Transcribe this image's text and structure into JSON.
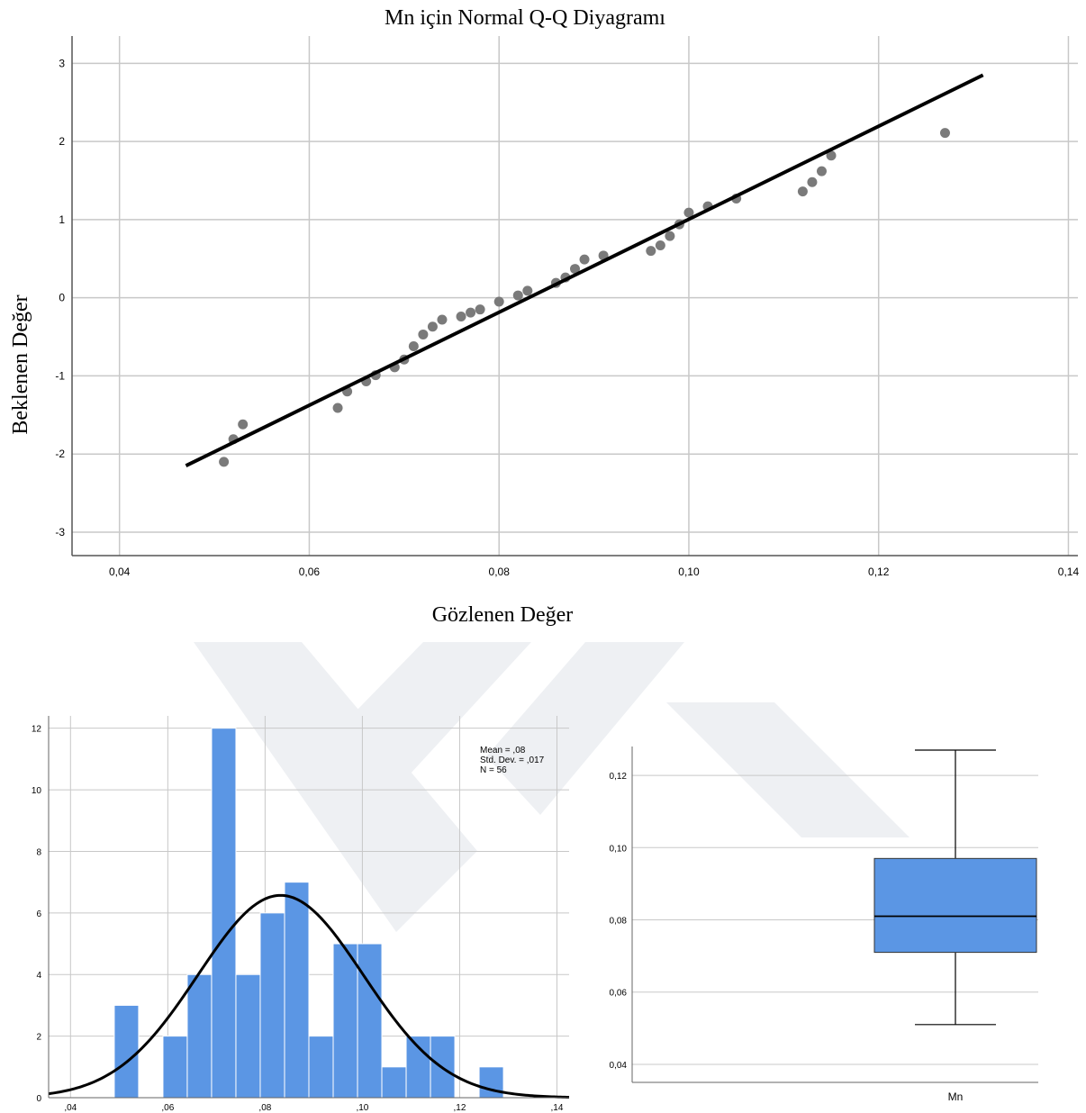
{
  "chart_data": [
    {
      "type": "scatter",
      "title": "Mn için Normal Q-Q Diyagramı",
      "xlabel": "Gözlenen Değer",
      "ylabel": "Beklenen Değer",
      "xlim": [
        0.035,
        0.141
      ],
      "ylim": [
        -3.3,
        3.35
      ],
      "x_ticks": [
        0.04,
        0.06,
        0.08,
        0.1,
        0.12,
        0.14
      ],
      "x_tick_labels": [
        "0,04",
        "0,06",
        "0,08",
        "0,10",
        "0,12",
        "0,14"
      ],
      "y_ticks": [
        -3,
        -2,
        -1,
        0,
        1,
        2,
        3
      ],
      "y_tick_labels": [
        "-3",
        "-2",
        "-1",
        "0",
        "1",
        "2",
        "3"
      ],
      "grid": true,
      "reference_line": {
        "x": [
          0.047,
          0.131
        ],
        "y": [
          -2.15,
          2.85
        ]
      },
      "points": [
        [
          0.051,
          -2.1
        ],
        [
          0.052,
          -1.81
        ],
        [
          0.053,
          -1.62
        ],
        [
          0.063,
          -1.41
        ],
        [
          0.064,
          -1.2
        ],
        [
          0.066,
          -1.07
        ],
        [
          0.067,
          -0.99
        ],
        [
          0.069,
          -0.89
        ],
        [
          0.07,
          -0.79
        ],
        [
          0.071,
          -0.62
        ],
        [
          0.072,
          -0.47
        ],
        [
          0.073,
          -0.37
        ],
        [
          0.074,
          -0.28
        ],
        [
          0.076,
          -0.24
        ],
        [
          0.077,
          -0.19
        ],
        [
          0.078,
          -0.15
        ],
        [
          0.08,
          -0.05
        ],
        [
          0.082,
          0.03
        ],
        [
          0.083,
          0.09
        ],
        [
          0.086,
          0.19
        ],
        [
          0.087,
          0.26
        ],
        [
          0.088,
          0.37
        ],
        [
          0.089,
          0.49
        ],
        [
          0.091,
          0.54
        ],
        [
          0.096,
          0.6
        ],
        [
          0.097,
          0.67
        ],
        [
          0.098,
          0.79
        ],
        [
          0.099,
          0.94
        ],
        [
          0.1,
          1.09
        ],
        [
          0.102,
          1.17
        ],
        [
          0.105,
          1.27
        ],
        [
          0.112,
          1.36
        ],
        [
          0.113,
          1.48
        ],
        [
          0.114,
          1.62
        ],
        [
          0.115,
          1.82
        ],
        [
          0.127,
          2.11
        ]
      ]
    },
    {
      "type": "bar",
      "subtype": "histogram",
      "title": "",
      "xlabel": "",
      "ylabel": "",
      "bin_width": 0.005,
      "bin_start": 0.049,
      "counts": [
        3,
        0,
        2,
        4,
        12,
        4,
        6,
        7,
        2,
        5,
        5,
        1,
        2,
        2,
        0,
        1
      ],
      "xlim": [
        0.0355,
        0.1425
      ],
      "ylim": [
        0,
        12.4
      ],
      "x_ticks": [
        0.04,
        0.06,
        0.08,
        0.1,
        0.12,
        0.14
      ],
      "x_tick_labels": [
        ",04",
        ",06",
        ",08",
        ",10",
        ",12",
        ",14"
      ],
      "y_ticks": [
        0,
        2,
        4,
        6,
        8,
        10,
        12
      ],
      "y_tick_labels": [
        "0",
        "2",
        "4",
        "6",
        "8",
        "10",
        "12"
      ],
      "bar_color": "#5b96e4",
      "stats": [
        "Mean = ,08",
        "Std. Dev. = ,017",
        "N = 56"
      ],
      "normal_curve": {
        "mean": 0.0832,
        "std_dev": 0.017,
        "n": 56
      },
      "grid": true
    },
    {
      "type": "boxplot",
      "title": "",
      "categories": [
        "Mn"
      ],
      "whisker_low": 0.051,
      "q1": 0.071,
      "median": 0.081,
      "q3": 0.097,
      "whisker_high": 0.127,
      "ylim": [
        0.035,
        0.128
      ],
      "y_ticks": [
        0.04,
        0.06,
        0.08,
        0.1,
        0.12
      ],
      "y_tick_labels": [
        "0,04",
        "0,06",
        "0,08",
        "0,10",
        "0,12"
      ],
      "box_color": "#5b96e4",
      "grid": true
    }
  ]
}
